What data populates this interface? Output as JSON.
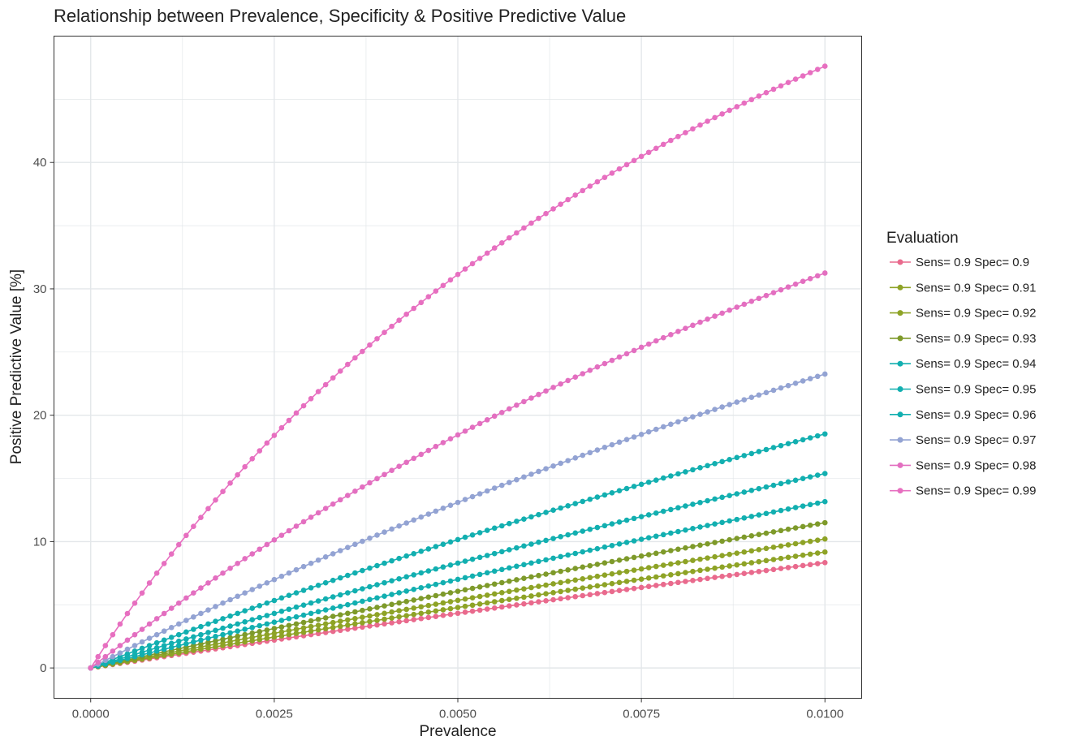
{
  "chart_data": {
    "type": "line",
    "title": "Relationship between Prevalence, Specificity & Positive Predictive Value",
    "xlabel": "Prevalence",
    "ylabel": "Positive Predictive Value [%]",
    "xlim": [
      -0.0005,
      0.0105
    ],
    "ylim": [
      -2.4,
      50
    ],
    "x_ticks": [
      "0.0000",
      "0.0025",
      "0.0050",
      "0.0075",
      "0.0100"
    ],
    "y_ticks": [
      "0",
      "10",
      "20",
      "30",
      "40"
    ],
    "grid": true,
    "legend_title": "Evaluation",
    "legend_position": "right",
    "x": {
      "start": 0.0,
      "end": 0.01,
      "step": 0.0001
    },
    "sensitivity": 0.9,
    "series": [
      {
        "name": "Sens= 0.9 Spec= 0.9",
        "specificity": 0.9,
        "color": "#E96A8D"
      },
      {
        "name": "Sens= 0.9 Spec= 0.91",
        "specificity": 0.91,
        "color": "#8EA326"
      },
      {
        "name": "Sens= 0.9 Spec= 0.92",
        "specificity": 0.92,
        "color": "#8EA326"
      },
      {
        "name": "Sens= 0.9 Spec= 0.93",
        "specificity": 0.93,
        "color": "#7E9A2A"
      },
      {
        "name": "Sens= 0.9 Spec= 0.94",
        "specificity": 0.94,
        "color": "#12AFB0"
      },
      {
        "name": "Sens= 0.9 Spec= 0.95",
        "specificity": 0.95,
        "color": "#12AFB0"
      },
      {
        "name": "Sens= 0.9 Spec= 0.96",
        "specificity": 0.96,
        "color": "#12AFB0"
      },
      {
        "name": "Sens= 0.9 Spec= 0.97",
        "specificity": 0.97,
        "color": "#93A3D3"
      },
      {
        "name": "Sens= 0.9 Spec= 0.98",
        "specificity": 0.98,
        "color": "#E36FC0"
      },
      {
        "name": "Sens= 0.9 Spec= 0.99",
        "specificity": 0.99,
        "color": "#E76FC0"
      }
    ]
  }
}
